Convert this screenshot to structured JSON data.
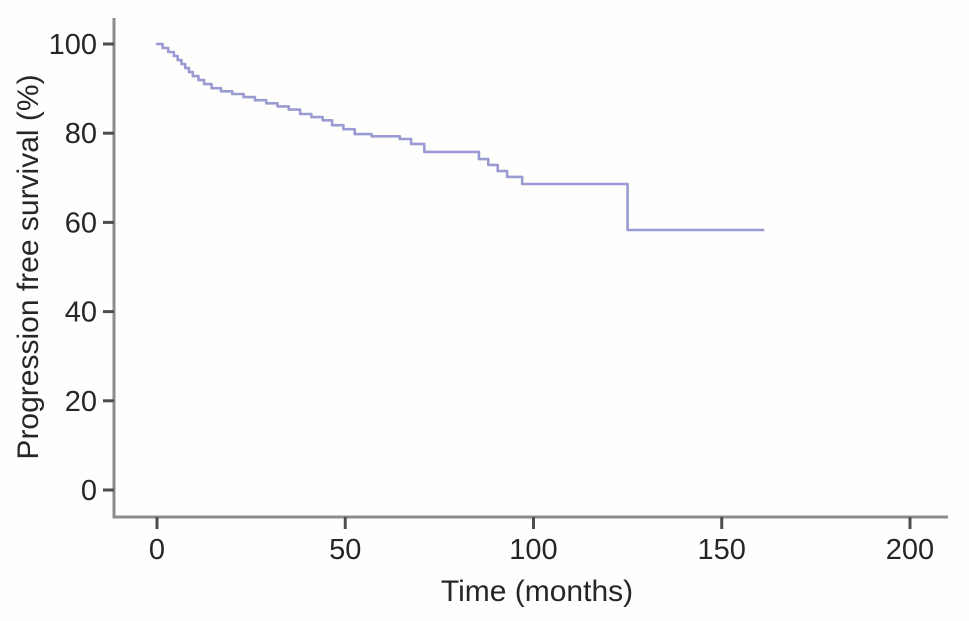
{
  "chart_data": {
    "type": "line",
    "subtype": "kaplan-meier-step-curve",
    "title": "",
    "xlabel": "Time (months)",
    "ylabel": "Progression free survival (%)",
    "xlim": [
      0,
      200
    ],
    "ylim": [
      0,
      100
    ],
    "x_ticks": [
      0,
      50,
      100,
      150,
      200
    ],
    "y_ticks": [
      0,
      20,
      40,
      60,
      80,
      100
    ],
    "grid": false,
    "legend": "none",
    "colors": {
      "curve": "#9b9bd3",
      "axis_line": "#8c8c8c",
      "tick_mark": "#4d4d4d",
      "text": "#262626",
      "background": "#fefefc"
    },
    "series": [
      {
        "name": "Progression free survival",
        "color": "#9b9bd3",
        "steps": [
          [
            0,
            100
          ],
          [
            1.5,
            99.1
          ],
          [
            3,
            98.2
          ],
          [
            4.5,
            97.3
          ],
          [
            5.5,
            96.4
          ],
          [
            6.5,
            95.5
          ],
          [
            7.5,
            94.6
          ],
          [
            8.5,
            93.7
          ],
          [
            9.5,
            92.8
          ],
          [
            11,
            91.9
          ],
          [
            12.5,
            91.0
          ],
          [
            14.5,
            90.1
          ],
          [
            17,
            89.4
          ],
          [
            20,
            88.8
          ],
          [
            23,
            88.1
          ],
          [
            26,
            87.4
          ],
          [
            29,
            86.7
          ],
          [
            32,
            86.0
          ],
          [
            35,
            85.3
          ],
          [
            38,
            84.3
          ],
          [
            41,
            83.6
          ],
          [
            44,
            82.9
          ],
          [
            46.5,
            81.8
          ],
          [
            49.5,
            80.9
          ],
          [
            52.5,
            79.8
          ],
          [
            57,
            79.3
          ],
          [
            64.5,
            78.7
          ],
          [
            67.5,
            77.6
          ],
          [
            71,
            75.8
          ],
          [
            85.5,
            74.2
          ],
          [
            88,
            72.9
          ],
          [
            90.5,
            71.5
          ],
          [
            93,
            70.2
          ],
          [
            97,
            68.6
          ],
          [
            125,
            58.3
          ]
        ],
        "end_time": 161,
        "final_value": 58.3
      }
    ]
  }
}
